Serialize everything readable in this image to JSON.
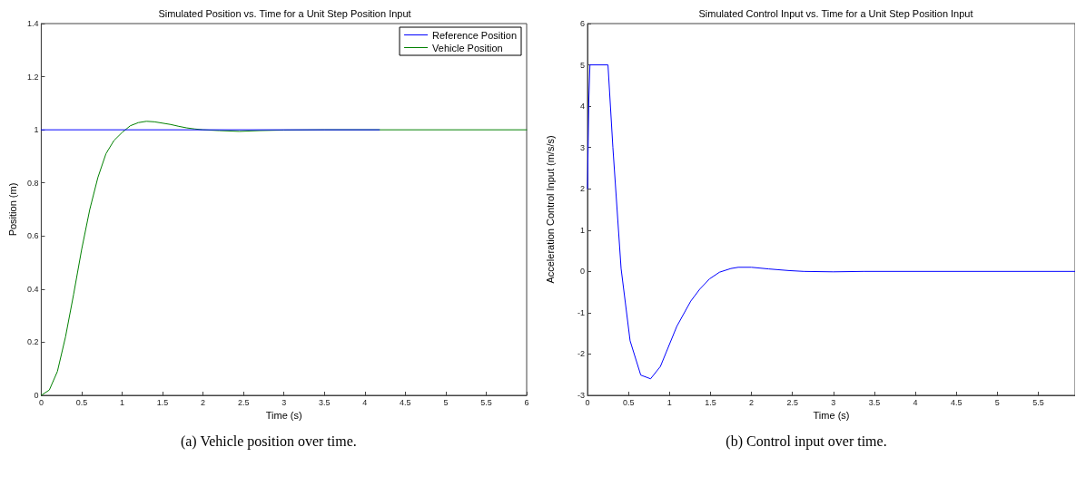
{
  "chart_data": [
    {
      "type": "line",
      "title": "Simulated Position vs. Time for a Unit Step Position Input",
      "xlabel": "Time (s)",
      "ylabel": "Position (m)",
      "annotations": [
        "(a) Vehicle position over time."
      ],
      "series": [
        {
          "name": "Reference Position",
          "color": "#0000ff",
          "x": [
            0,
            4.18
          ],
          "values": [
            1,
            1
          ]
        },
        {
          "name": "Vehicle Position",
          "color": "#008000",
          "x": [
            0,
            0.1,
            0.2,
            0.3,
            0.4,
            0.5,
            0.6,
            0.7,
            0.8,
            0.9,
            1.0,
            1.1,
            1.2,
            1.3,
            1.4,
            1.5,
            1.6,
            1.7,
            1.8,
            1.9,
            2.0,
            2.2,
            2.45,
            2.7,
            3.0,
            3.5,
            6
          ],
          "values": [
            0,
            0.02,
            0.09,
            0.22,
            0.38,
            0.55,
            0.7,
            0.82,
            0.91,
            0.96,
            0.99,
            1.015,
            1.027,
            1.032,
            1.03,
            1.025,
            1.02,
            1.013,
            1.007,
            1.003,
            1.0,
            0.997,
            0.994,
            0.997,
            0.999,
            1.0,
            1.0
          ]
        }
      ],
      "xlim": [
        0,
        6
      ],
      "xticks": [
        0,
        0.5,
        1,
        1.5,
        2,
        2.5,
        3,
        3.5,
        4,
        4.5,
        5,
        5.5,
        6
      ],
      "ylim": [
        0,
        1.4
      ],
      "yticks": [
        0,
        0.2,
        0.4,
        0.6,
        0.8,
        1,
        1.2,
        1.4
      ],
      "grid": false,
      "legend": "top right",
      "marker": "none",
      "line_style": "solid"
    },
    {
      "type": "line",
      "title": "Simulated Control Input vs. Time for a Unit Step Position Input",
      "xlabel": "Time (s)",
      "ylabel": "Acceleration Control Input (m/s/s)",
      "annotations": [
        "(b) Control input over time."
      ],
      "series": [
        {
          "color": "#0000ff",
          "x": [
            0,
            0.017,
            0.03,
            0.25,
            0.31,
            0.41,
            0.52,
            0.65,
            0.77,
            0.89,
            1.09,
            1.26,
            1.37,
            1.49,
            1.61,
            1.75,
            1.84,
            2.0,
            2.21,
            2.46,
            2.64,
            3.0,
            3.37,
            5.95
          ],
          "values": [
            2.0,
            4.2,
            5,
            5,
            3.0,
            0.07,
            -1.68,
            -2.51,
            -2.6,
            -2.3,
            -1.33,
            -0.72,
            -0.43,
            -0.18,
            -0.02,
            0.07,
            0.1,
            0.1,
            0.06,
            0.02,
            0,
            -0.01,
            0,
            0
          ]
        }
      ],
      "xlim": [
        0,
        5.95
      ],
      "xticks": [
        0,
        0.5,
        1,
        1.5,
        2,
        2.5,
        3,
        3.5,
        4,
        4.5,
        5,
        5.5
      ],
      "ylim": [
        -3,
        6
      ],
      "yticks": [
        -3,
        -2,
        -1,
        0,
        1,
        2,
        3,
        4,
        5,
        6
      ],
      "grid": false,
      "legend": false,
      "marker": "none",
      "line_style": "solid"
    }
  ]
}
